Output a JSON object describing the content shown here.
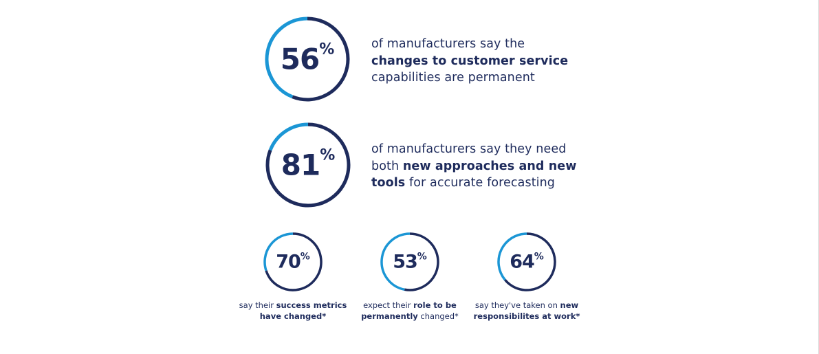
{
  "colors": {
    "dark_navy": "#1e2b5c",
    "accent_blue": "#1b96d5"
  },
  "chart_data": [
    {
      "type": "pie",
      "subtype": "donut-gauge",
      "value": 56,
      "unit": "%",
      "description": {
        "before": "of manufacturers say the ",
        "bold": "changes to customer service",
        "after": " capabilities are permanent"
      }
    },
    {
      "type": "pie",
      "subtype": "donut-gauge",
      "value": 81,
      "unit": "%",
      "description": {
        "before": "of manufacturers say they need both ",
        "bold": "new approaches and new tools",
        "after": " for accurate forecasting"
      }
    },
    {
      "type": "pie",
      "subtype": "donut-gauge",
      "value": 70,
      "unit": "%",
      "description": {
        "before": "say their ",
        "bold": "success metrics have",
        "after": " changed*"
      }
    },
    {
      "type": "pie",
      "subtype": "donut-gauge",
      "value": 53,
      "unit": "%",
      "description": {
        "before": "expect their ",
        "bold": "role to be permanently",
        "after": " changed*"
      }
    },
    {
      "type": "pie",
      "subtype": "donut-gauge",
      "value": 64,
      "unit": "%",
      "description": {
        "before": "say they've taken on ",
        "bold": "new responsibilites at work",
        "after": "*"
      }
    }
  ]
}
